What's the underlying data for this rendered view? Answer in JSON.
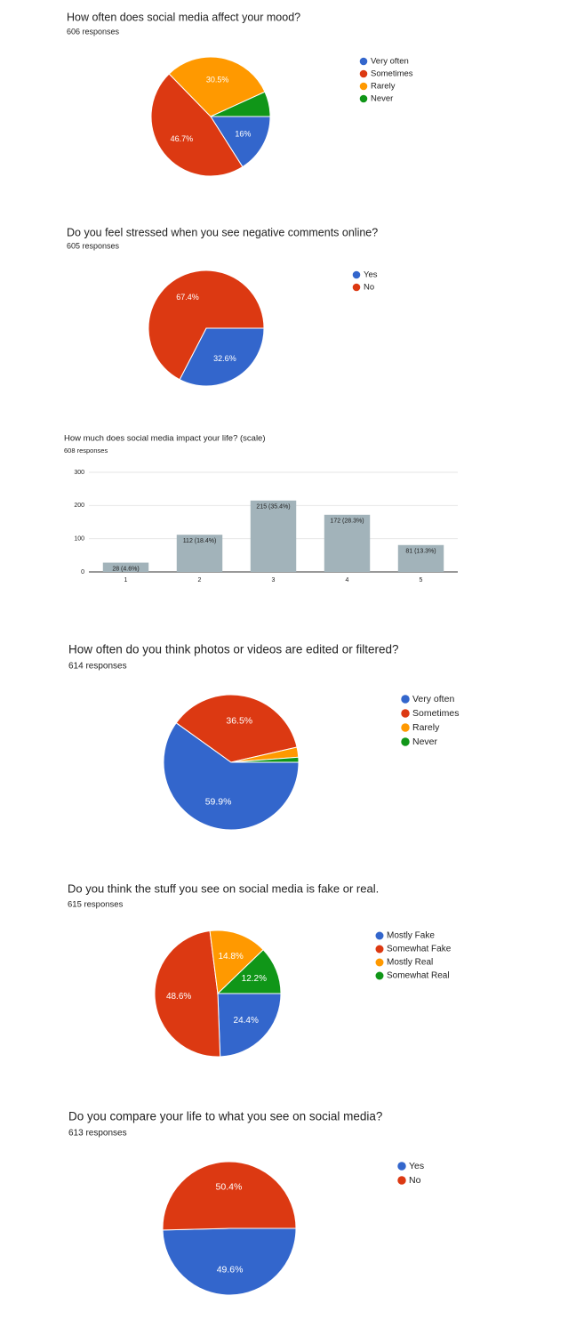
{
  "chart_data": [
    {
      "type": "pie",
      "title": "How often does social media affect your mood?",
      "subtitle": "606 responses",
      "categories": [
        "Very often",
        "Sometimes",
        "Rarely",
        "Never"
      ],
      "values": [
        16,
        46.7,
        30.5,
        6.8
      ],
      "value_labels": [
        "16%",
        "46.7%",
        "30.5%",
        null
      ],
      "colors": [
        "#3366cc",
        "#dc3912",
        "#ff9900",
        "#109618"
      ]
    },
    {
      "type": "pie",
      "title": "Do you feel stressed when you see negative comments online?",
      "subtitle": "605 responses",
      "categories": [
        "Yes",
        "No"
      ],
      "values": [
        32.6,
        67.4
      ],
      "value_labels": [
        "32.6%",
        "67.4%"
      ],
      "colors": [
        "#3366cc",
        "#dc3912"
      ]
    },
    {
      "type": "bar",
      "title": "How much does social media impact your life? (scale)",
      "subtitle": "608 responses",
      "categories": [
        "1",
        "2",
        "3",
        "4",
        "5"
      ],
      "values": [
        28,
        112,
        215,
        172,
        81
      ],
      "value_labels": [
        "28 (4.6%)",
        "112 (18.4%)",
        "215 (35.4%)",
        "172 (28.3%)",
        "81 (13.3%)"
      ],
      "color": "#a2b3ba",
      "ylim": [
        0,
        300
      ],
      "yticks": [
        0,
        100,
        200,
        300
      ],
      "grid": true
    },
    {
      "type": "pie",
      "title": "How often do you think photos or videos are edited or filtered?",
      "subtitle": "614 responses",
      "categories": [
        "Very often",
        "Sometimes",
        "Rarely",
        "Never"
      ],
      "values": [
        59.9,
        36.5,
        2.4,
        1.2
      ],
      "value_labels": [
        "59.9%",
        "36.5%",
        null,
        null
      ],
      "colors": [
        "#3366cc",
        "#dc3912",
        "#ff9900",
        "#109618"
      ]
    },
    {
      "type": "pie",
      "title": "Do you think the stuff you see on social media is fake or real.",
      "subtitle": "615 responses",
      "categories": [
        "Mostly Fake",
        "Somewhat Fake",
        "Mostly Real",
        "Somewhat Real"
      ],
      "values": [
        24.4,
        48.6,
        14.8,
        12.2
      ],
      "value_labels": [
        "24.4%",
        "48.6%",
        "14.8%",
        "12.2%"
      ],
      "colors": [
        "#3366cc",
        "#dc3912",
        "#ff9900",
        "#109618"
      ]
    },
    {
      "type": "pie",
      "title": "Do you compare your life to what you see on social media?",
      "subtitle": "613 responses",
      "categories": [
        "Yes",
        "No"
      ],
      "values": [
        49.6,
        50.4
      ],
      "value_labels": [
        "49.6%",
        "50.4%"
      ],
      "colors": [
        "#3366cc",
        "#dc3912"
      ]
    }
  ]
}
